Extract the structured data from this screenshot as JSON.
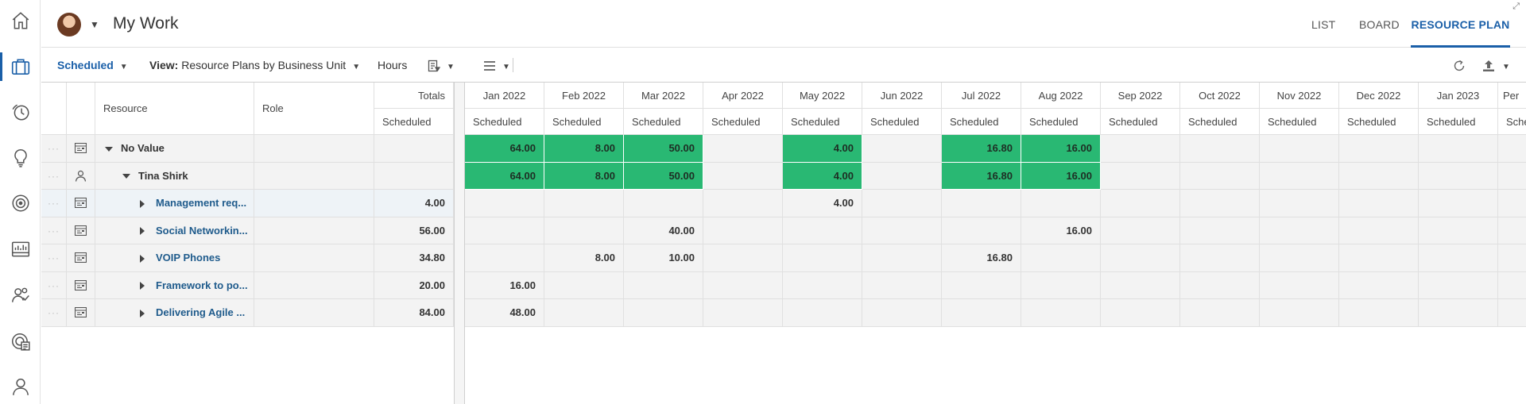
{
  "rail": {
    "items": [
      {
        "icon": "home-icon"
      },
      {
        "icon": "briefcase-icon",
        "active": true
      },
      {
        "icon": "timesheet-icon"
      },
      {
        "icon": "lightbulb-icon"
      },
      {
        "icon": "target-icon"
      },
      {
        "icon": "reports-icon"
      },
      {
        "icon": "people-icon"
      },
      {
        "icon": "portfolio-icon"
      },
      {
        "icon": "user-icon"
      }
    ]
  },
  "header": {
    "title": "My Work",
    "tabs": [
      "LIST",
      "BOARD",
      "RESOURCE PLAN"
    ],
    "active_tab": "RESOURCE PLAN"
  },
  "toolbar": {
    "metric": "Scheduled",
    "view_label": "View:",
    "view_value": "Resource Plans by Business Unit",
    "units": "Hours"
  },
  "grid": {
    "columns": {
      "resource": "Resource",
      "role": "Role",
      "totals": "Totals",
      "sub": "Scheduled"
    },
    "months": [
      "Jan 2022",
      "Feb 2022",
      "Mar 2022",
      "Apr 2022",
      "May 2022",
      "Jun 2022",
      "Jul 2022",
      "Aug 2022",
      "Sep 2022",
      "Oct 2022",
      "Nov 2022",
      "Dec 2022",
      "Jan 2023",
      "Per"
    ],
    "month_sub": "Scheduled",
    "month_sub_last": "Sche",
    "rows": [
      {
        "name": "No Value",
        "level": 0,
        "icon": "plan-icon",
        "total": "",
        "values": [
          "64.00",
          "8.00",
          "50.00",
          "",
          "4.00",
          "",
          "16.80",
          "16.00",
          "",
          "",
          "",
          "",
          "",
          ""
        ],
        "highlight": true
      },
      {
        "name": "Tina Shirk",
        "level": 1,
        "icon": "person-icon",
        "total": "",
        "values": [
          "64.00",
          "8.00",
          "50.00",
          "",
          "4.00",
          "",
          "16.80",
          "16.00",
          "",
          "",
          "",
          "",
          "",
          ""
        ],
        "highlight": true
      },
      {
        "name": "Management req...",
        "level": 2,
        "icon": "plan-icon",
        "total": "4.00",
        "values": [
          "",
          "",
          "",
          "",
          "4.00",
          "",
          "",
          "",
          "",
          "",
          "",
          "",
          "",
          ""
        ],
        "selected": true
      },
      {
        "name": "Social Networkin...",
        "level": 2,
        "icon": "plan-icon",
        "total": "56.00",
        "values": [
          "",
          "",
          "40.00",
          "",
          "",
          "",
          "",
          "16.00",
          "",
          "",
          "",
          "",
          "",
          ""
        ]
      },
      {
        "name": "VOIP Phones",
        "level": 2,
        "icon": "plan-icon",
        "total": "34.80",
        "values": [
          "",
          "8.00",
          "10.00",
          "",
          "",
          "",
          "16.80",
          "",
          "",
          "",
          "",
          "",
          "",
          ""
        ]
      },
      {
        "name": "Framework to po...",
        "level": 2,
        "icon": "plan-icon",
        "total": "20.00",
        "values": [
          "16.00",
          "",
          "",
          "",
          "",
          "",
          "",
          "",
          "",
          "",
          "",
          "",
          "",
          ""
        ]
      },
      {
        "name": "Delivering Agile ...",
        "level": 2,
        "icon": "plan-icon",
        "total": "84.00",
        "values": [
          "48.00",
          "",
          "",
          "",
          "",
          "",
          "",
          "",
          "",
          "",
          "",
          "",
          "",
          ""
        ]
      }
    ]
  },
  "colors": {
    "accent": "#1a5fa8",
    "highlight": "#29b873"
  }
}
